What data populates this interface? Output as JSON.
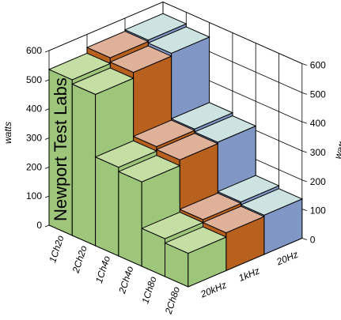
{
  "chart_data": {
    "type": "bar3d",
    "watermark": "Newport Test Labs",
    "ylabel": "watts",
    "ylim": [
      0,
      600
    ],
    "yticks": [
      0,
      100,
      200,
      300,
      400,
      500,
      600
    ],
    "categories": [
      "1Ch2o",
      "2Ch2o",
      "1Ch4o",
      "2Ch4o",
      "1Ch8o",
      "2Ch8o"
    ],
    "series": [
      {
        "name": "20kHz",
        "color": "#9dc67a",
        "top_color": "#c5dea4",
        "values": [
          535,
          520,
          305,
          290,
          130,
          115
        ]
      },
      {
        "name": "1kHz",
        "color": "#b8601e",
        "top_color": "#dfb198",
        "values": [
          555,
          540,
          320,
          310,
          140,
          130
        ]
      },
      {
        "name": "20Hz",
        "color": "#8096c5",
        "top_color": "#cde3e2",
        "values": [
          560,
          550,
          325,
          315,
          145,
          135
        ]
      }
    ]
  }
}
